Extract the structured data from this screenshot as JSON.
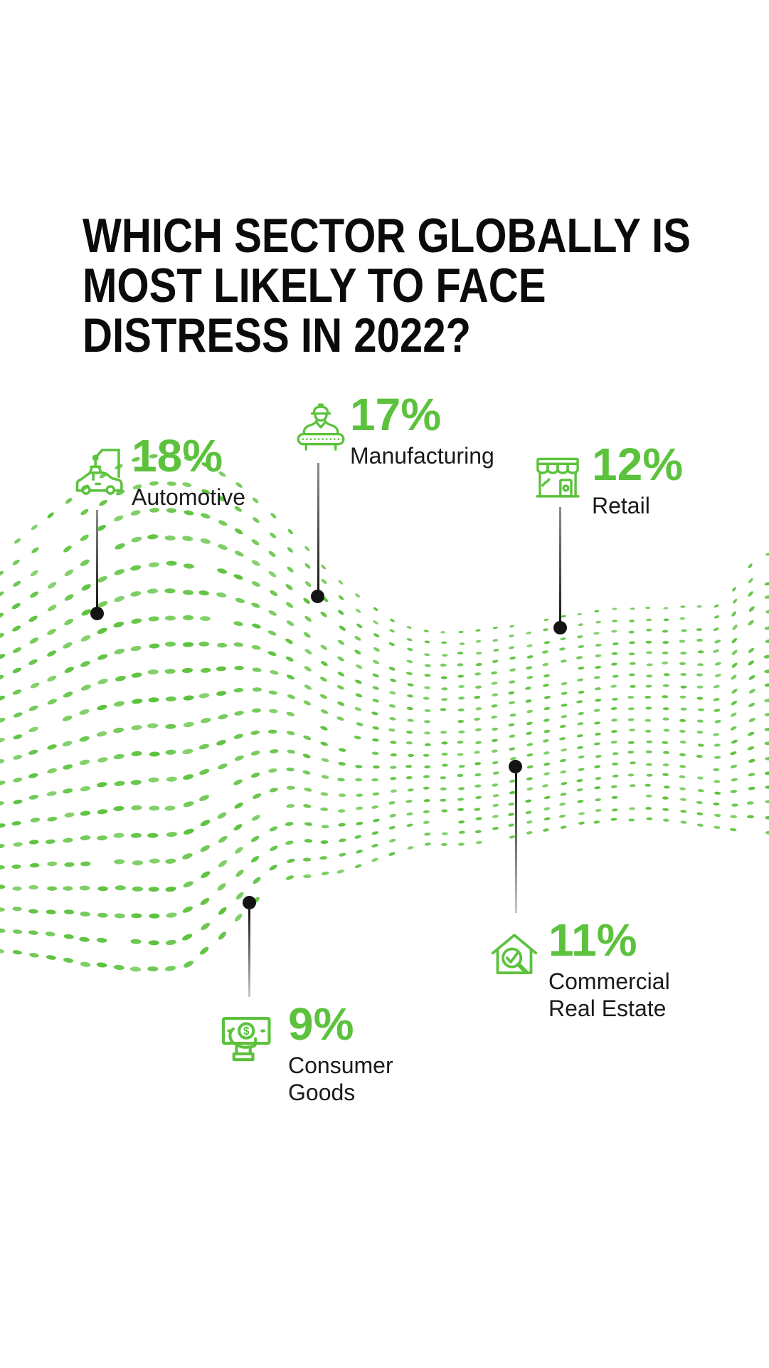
{
  "title": {
    "lines": [
      "WHICH SECTOR GLOBALLY IS",
      "MOST LIKELY TO FACE",
      "DISTRESS IN 2022?"
    ]
  },
  "sectors": [
    {
      "label": "Automotive",
      "value": 18,
      "value_label": "18%",
      "icon": "car-assembly-icon"
    },
    {
      "label": "Manufacturing",
      "value": 17,
      "value_label": "17%",
      "icon": "factory-worker-icon"
    },
    {
      "label": "Retail",
      "value": 12,
      "value_label": "12%",
      "icon": "storefront-icon"
    },
    {
      "label": "Commercial Real Estate",
      "value": 11,
      "value_label": "11%",
      "icon": "house-search-icon"
    },
    {
      "label": "Consumer Goods",
      "value": 9,
      "value_label": "9%",
      "icon": "money-hand-icon"
    }
  ],
  "icons": {
    "dollar_glyph": "$"
  },
  "colors": {
    "accent_green": "#5CC23D",
    "title_black": "#0b0b0b",
    "label_dark": "#1a1a1a",
    "connector_dark": "#141414"
  },
  "chart_data": {
    "type": "bar",
    "style": "pictorial-callout-infographic-on-dotted-wave",
    "title": "WHICH SECTOR GLOBALLY IS MOST LIKELY TO FACE DISTRESS IN 2022?",
    "categories": [
      "Automotive",
      "Manufacturing",
      "Retail",
      "Commercial Real Estate",
      "Consumer Goods"
    ],
    "values": [
      18,
      17,
      12,
      11,
      9
    ],
    "value_suffix": "%",
    "legend": false,
    "grid": false
  }
}
